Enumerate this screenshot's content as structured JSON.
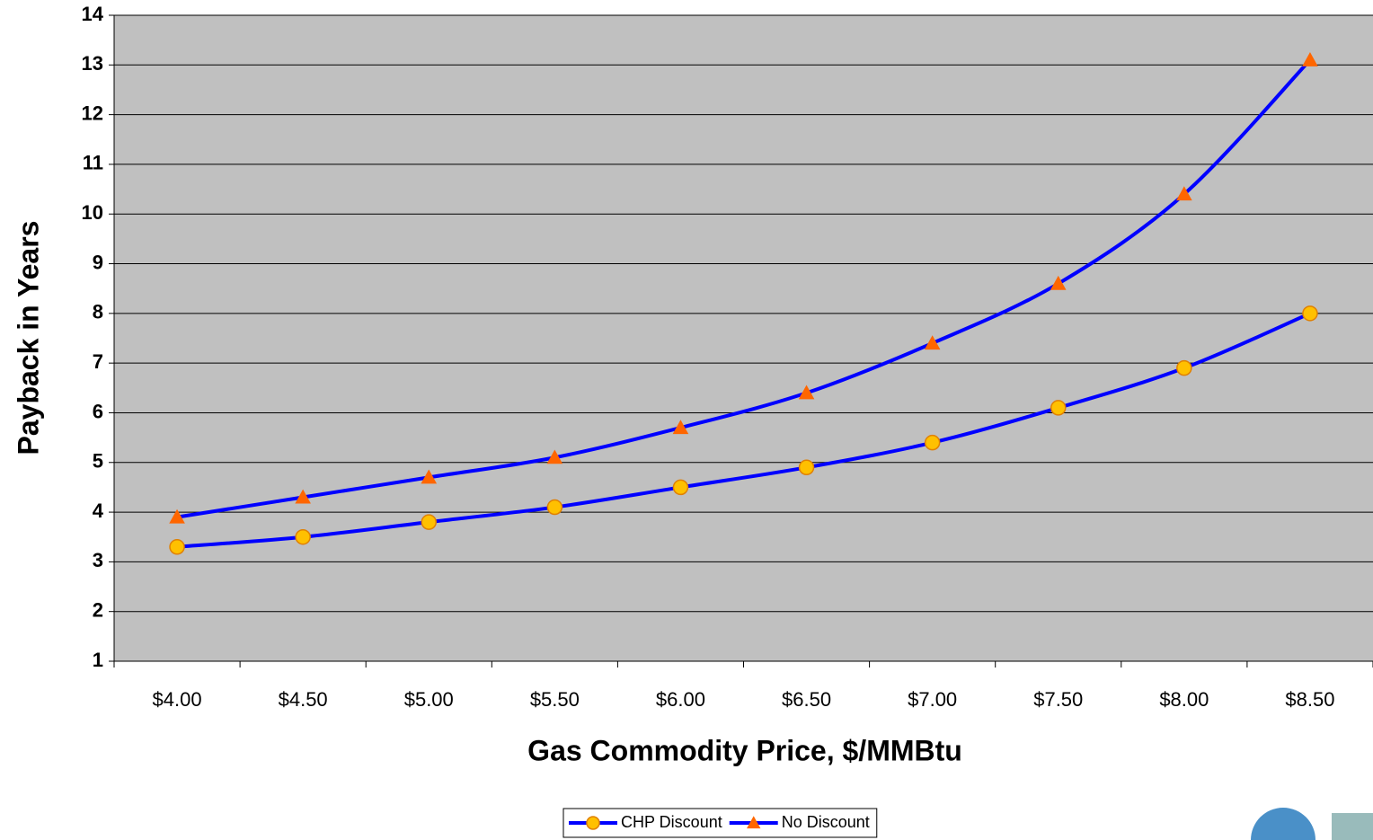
{
  "chart_data": {
    "type": "line",
    "x_label": "Gas Commodity Price, $/MMBtu",
    "y_label": "Payback in Years",
    "categories": [
      "$4.00",
      "$4.50",
      "$5.00",
      "$5.50",
      "$6.00",
      "$6.50",
      "$7.00",
      "$7.50",
      "$8.00",
      "$8.50"
    ],
    "series": [
      {
        "name": "CHP Discount",
        "color": "#0000ff",
        "marker": "circle",
        "marker_color": "#ffc000",
        "values": [
          3.3,
          3.5,
          3.8,
          4.1,
          4.5,
          4.9,
          5.4,
          6.1,
          6.9,
          8.0
        ]
      },
      {
        "name": "No Discount",
        "color": "#0000ff",
        "marker": "triangle",
        "marker_color": "#ff6600",
        "values": [
          3.9,
          4.3,
          4.7,
          5.1,
          5.7,
          6.4,
          7.4,
          8.6,
          10.4,
          13.1
        ]
      }
    ],
    "ylim": [
      1,
      14
    ],
    "yticks": [
      1,
      2,
      3,
      4,
      5,
      6,
      7,
      8,
      9,
      10,
      11,
      12,
      13,
      14
    ],
    "grid": true,
    "legend": "bottom",
    "plot_background": "#c0c0c0"
  }
}
